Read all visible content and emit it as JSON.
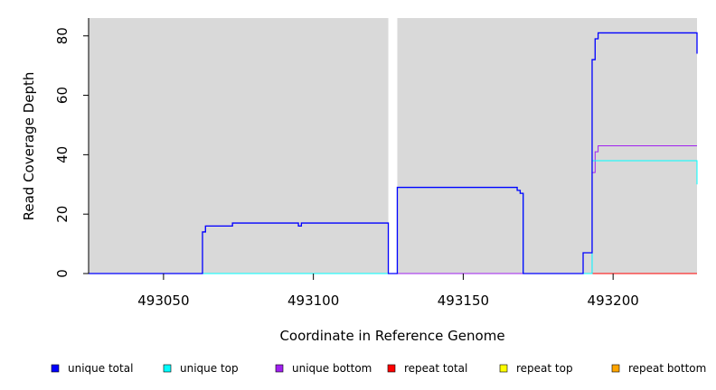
{
  "chart_data": {
    "type": "line",
    "xlabel": "Coordinate in Reference Genome",
    "ylabel": "Read Coverage Depth",
    "xlim": [
      493025,
      493228
    ],
    "ylim": [
      0,
      86
    ],
    "x_ticks": [
      493050,
      493100,
      493150,
      493200
    ],
    "y_ticks": [
      0,
      20,
      40,
      60,
      80
    ],
    "grid": false,
    "legend_position": "bottom",
    "shaded_regions": [
      [
        493025,
        493125
      ],
      [
        493128,
        493228
      ]
    ],
    "shade_color": "#d9d9d9",
    "series": [
      {
        "name": "unique total",
        "color": "#0000ff",
        "points": [
          [
            493025,
            0
          ],
          [
            493063,
            0
          ],
          [
            493063,
            14
          ],
          [
            493064,
            14
          ],
          [
            493064,
            16
          ],
          [
            493073,
            16
          ],
          [
            493073,
            17
          ],
          [
            493095,
            17
          ],
          [
            493095,
            16
          ],
          [
            493096,
            16
          ],
          [
            493096,
            17
          ],
          [
            493125,
            17
          ],
          [
            493125,
            0
          ],
          [
            493128,
            0
          ],
          [
            493128,
            29
          ],
          [
            493168,
            29
          ],
          [
            493168,
            28
          ],
          [
            493169,
            28
          ],
          [
            493169,
            27
          ],
          [
            493170,
            27
          ],
          [
            493170,
            0
          ],
          [
            493190,
            0
          ],
          [
            493190,
            7
          ],
          [
            493193,
            7
          ],
          [
            493193,
            72
          ],
          [
            493194,
            72
          ],
          [
            493194,
            79
          ],
          [
            493195,
            79
          ],
          [
            493195,
            81
          ],
          [
            493228,
            81
          ],
          [
            493228,
            74
          ]
        ]
      },
      {
        "name": "unique top",
        "color": "#00ffff",
        "points": [
          [
            493025,
            0
          ],
          [
            493128,
            0
          ],
          [
            493128,
            29
          ],
          [
            493168,
            29
          ],
          [
            493168,
            28
          ],
          [
            493169,
            28
          ],
          [
            493169,
            27
          ],
          [
            493170,
            27
          ],
          [
            493170,
            0
          ],
          [
            493193,
            0
          ],
          [
            493193,
            38
          ],
          [
            493228,
            38
          ],
          [
            493228,
            30
          ]
        ]
      },
      {
        "name": "unique bottom",
        "color": "#a020f0",
        "points": [
          [
            493025,
            0
          ],
          [
            493063,
            0
          ],
          [
            493063,
            14
          ],
          [
            493064,
            14
          ],
          [
            493064,
            16
          ],
          [
            493073,
            16
          ],
          [
            493073,
            17
          ],
          [
            493095,
            17
          ],
          [
            493095,
            16
          ],
          [
            493096,
            16
          ],
          [
            493096,
            17
          ],
          [
            493125,
            17
          ],
          [
            493125,
            0
          ],
          [
            493193,
            0
          ],
          [
            493193,
            34
          ],
          [
            493194,
            34
          ],
          [
            493194,
            41
          ],
          [
            493195,
            41
          ],
          [
            493195,
            43
          ],
          [
            493228,
            43
          ]
        ]
      },
      {
        "name": "repeat total",
        "color": "#ff0000",
        "points": [
          [
            493025,
            0
          ],
          [
            493228,
            0
          ]
        ]
      },
      {
        "name": "repeat top",
        "color": "#ffff00",
        "points": [
          [
            493025,
            0
          ],
          [
            493228,
            0
          ]
        ]
      },
      {
        "name": "repeat bottom",
        "color": "#ffa500",
        "points": [
          [
            493193,
            0
          ],
          [
            493228,
            0
          ]
        ]
      }
    ]
  }
}
